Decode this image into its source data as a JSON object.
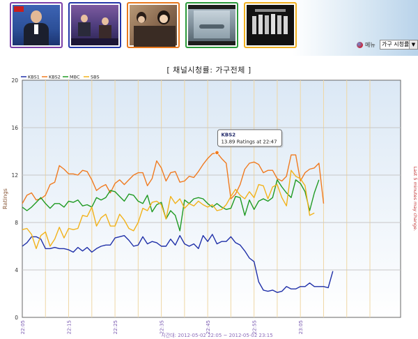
{
  "header": {
    "menu_label": "메뉴",
    "select_value": "가구 시청률",
    "thumbnails": [
      {
        "border": "#7b3fa8"
      },
      {
        "border": "#2536a8"
      },
      {
        "border": "#e8791e"
      },
      {
        "border": "#2a9a3a"
      },
      {
        "border": "#f0b020"
      }
    ]
  },
  "colors": {
    "kbs1": "#1f2fa8",
    "kbs2": "#f07a1f",
    "mbc": "#1f9a22",
    "sbs": "#f2b21a"
  },
  "chart_data": {
    "type": "line",
    "title": "[ 채널시청률: 가구전체 ]",
    "ylabel": "Ratings",
    "xlabel": "시간대: 2012-05-02 22:05 ~ 2012-05-02 23:15",
    "right_note": "Last 5 minutes may change.",
    "ylim": [
      0,
      20
    ],
    "yticks": [
      0,
      4,
      8,
      12,
      16,
      20
    ],
    "x_start_minute": 1325,
    "x_end_minute": 1400,
    "x_step_minutes": 1,
    "xticks": [
      "22:05",
      "22:15",
      "22:25",
      "22:35",
      "22:45",
      "22:55",
      "23:05"
    ],
    "grid": true,
    "legend_position": "top-left",
    "tooltip": {
      "series": "KBS2",
      "text": "13.89 Ratings at 22:47",
      "x_index": 42,
      "value": 13.89
    },
    "series": [
      {
        "name": "KBS1",
        "key": "kbs1",
        "values": [
          6.0,
          6.3,
          6.8,
          6.8,
          6.6,
          5.8,
          5.8,
          5.9,
          5.8,
          5.8,
          5.7,
          5.5,
          5.9,
          5.6,
          5.9,
          5.5,
          5.8,
          6.0,
          6.1,
          6.1,
          6.7,
          6.8,
          6.9,
          6.5,
          6.0,
          6.1,
          6.8,
          6.2,
          6.4,
          6.3,
          6.0,
          6.0,
          6.6,
          6.1,
          6.9,
          6.2,
          6.0,
          6.2,
          5.8,
          6.9,
          6.4,
          7.0,
          6.2,
          6.4,
          6.4,
          6.8,
          6.3,
          6.1,
          5.6,
          5.0,
          4.7,
          3.0,
          2.3,
          2.2,
          2.3,
          2.1,
          2.2,
          2.6,
          2.4,
          2.4,
          2.6,
          2.6,
          2.9,
          2.6,
          2.6,
          2.6,
          2.5,
          3.9
        ]
      },
      {
        "name": "KBS2",
        "key": "kbs2",
        "values": [
          9.6,
          10.3,
          10.5,
          9.9,
          10.0,
          10.3,
          11.2,
          11.4,
          12.8,
          12.5,
          12.1,
          12.1,
          12.0,
          12.4,
          12.3,
          11.6,
          10.7,
          11.0,
          11.2,
          10.5,
          11.3,
          11.6,
          11.2,
          11.6,
          12.0,
          12.2,
          12.2,
          11.1,
          11.7,
          13.2,
          12.6,
          11.5,
          12.2,
          12.3,
          11.4,
          11.5,
          11.9,
          11.8,
          12.3,
          12.9,
          13.4,
          13.8,
          13.89,
          13.4,
          13.0,
          10.0,
          10.4,
          11.2,
          12.5,
          13.0,
          13.1,
          12.9,
          12.2,
          12.4,
          12.4,
          11.7,
          11.5,
          11.9,
          13.7,
          13.7,
          11.5,
          12.2,
          12.5,
          12.6,
          13.0,
          9.6
        ]
      },
      {
        "name": "MBC",
        "key": "mbc",
        "values": [
          9.3,
          9.0,
          9.3,
          9.7,
          10.1,
          9.6,
          9.2,
          9.6,
          9.6,
          9.3,
          9.8,
          9.7,
          9.9,
          9.4,
          9.5,
          9.3,
          10.1,
          9.9,
          10.1,
          10.7,
          10.6,
          10.2,
          9.8,
          10.4,
          10.3,
          9.8,
          9.6,
          10.3,
          8.9,
          9.5,
          9.7,
          8.3,
          9.0,
          8.6,
          7.3,
          9.9,
          9.6,
          10.0,
          10.1,
          10.0,
          9.6,
          9.3,
          9.6,
          9.3,
          9.1,
          9.2,
          10.2,
          10.1,
          8.6,
          9.9,
          9.1,
          9.8,
          10.0,
          9.8,
          10.1,
          11.6,
          11.0,
          10.5,
          10.1,
          11.6,
          11.3,
          10.6,
          9.0,
          10.5,
          11.6
        ]
      },
      {
        "name": "SBS",
        "key": "sbs",
        "values": [
          7.4,
          7.5,
          7.0,
          5.8,
          6.9,
          7.2,
          6.0,
          6.6,
          7.6,
          6.7,
          7.5,
          7.4,
          7.5,
          8.6,
          8.5,
          9.3,
          7.7,
          8.4,
          8.7,
          7.7,
          7.7,
          8.7,
          8.2,
          7.5,
          7.3,
          8.0,
          9.2,
          9.0,
          9.7,
          9.8,
          9.5,
          8.3,
          10.2,
          9.6,
          10.0,
          9.2,
          9.6,
          9.4,
          9.8,
          9.5,
          9.3,
          9.5,
          9.0,
          9.1,
          9.5,
          10.2,
          10.8,
          10.3,
          10.0,
          10.6,
          10.1,
          11.2,
          11.1,
          10.0,
          11.0,
          11.2,
          10.1,
          9.4,
          12.4,
          11.9,
          11.7,
          11.1,
          8.6,
          8.8
        ]
      }
    ]
  }
}
